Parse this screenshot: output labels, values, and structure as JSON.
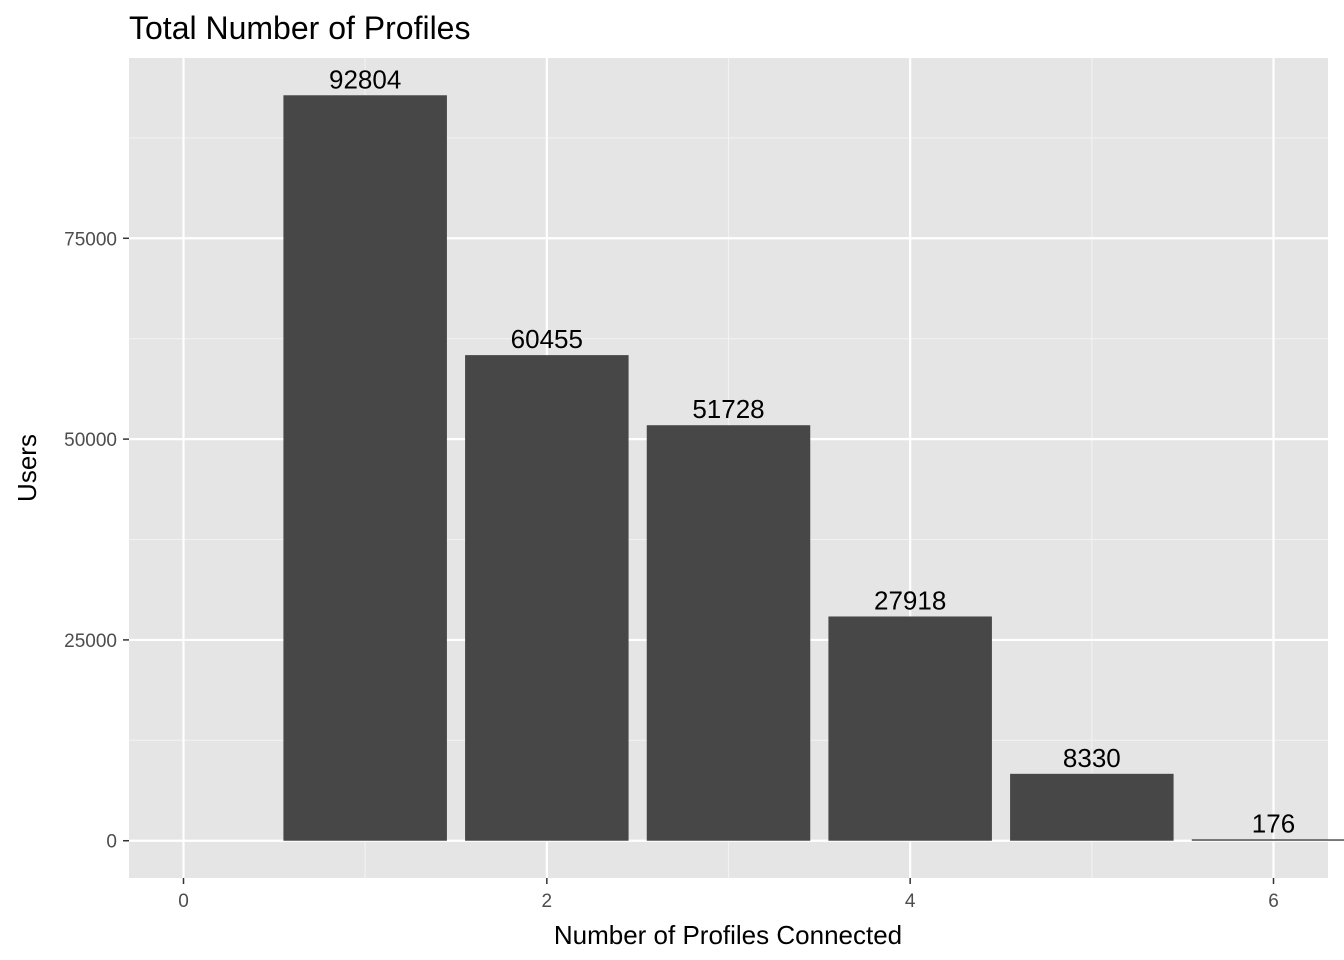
{
  "chart_data": {
    "type": "bar",
    "title": "Total Number of Profiles",
    "xlabel": "Number of Profiles Connected",
    "ylabel": "Users",
    "x": [
      1,
      2,
      3,
      4,
      5,
      6
    ],
    "values": [
      92804,
      60455,
      51728,
      27918,
      8330,
      176
    ],
    "data_labels": [
      "92804",
      "60455",
      "51728",
      "27918",
      "8330",
      "176"
    ],
    "xlim": [
      -0.3,
      6.3
    ],
    "ylim": [
      -4640,
      97444
    ],
    "x_ticks": [
      0,
      2,
      4,
      6
    ],
    "x_tick_labels": [
      "0",
      "2",
      "4",
      "6"
    ],
    "y_ticks": [
      0,
      25000,
      50000,
      75000
    ],
    "y_tick_labels": [
      "0",
      "25000",
      "50000",
      "75000"
    ],
    "grid": true,
    "legend": "none",
    "colors": {
      "bar": "#474747",
      "panel": "#e5e5e5",
      "grid_major": "#ffffff",
      "grid_minor": "#f2f2f2",
      "tick_text": "#4d4d4d"
    }
  }
}
